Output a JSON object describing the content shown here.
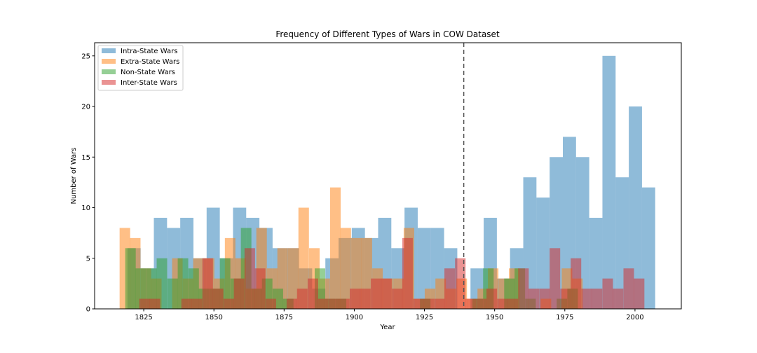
{
  "chart_data": {
    "type": "bar",
    "title": "Frequency of Different Types of Wars in COW Dataset",
    "xlabel": "Year",
    "ylabel": "Number of Wars",
    "xlim": [
      1807.5,
      2016.5
    ],
    "ylim": [
      0,
      26.3
    ],
    "x_ticks": [
      1825,
      1850,
      1875,
      1900,
      1925,
      1950,
      1975,
      2000
    ],
    "y_ticks": [
      0,
      5,
      10,
      15,
      20,
      25
    ],
    "grid": false,
    "legend_position": "top-left",
    "reference_line": {
      "x": 1939,
      "style": "dashed",
      "color": "#555555"
    },
    "series": [
      {
        "name": "Intra-State Wars",
        "color": "#1f77b4",
        "bin_width": 4.7,
        "bin_starts": [
          1819.2,
          1823.9,
          1828.6,
          1833.3,
          1838.0,
          1842.7,
          1847.4,
          1852.1,
          1856.8,
          1861.5,
          1866.2,
          1870.9,
          1875.6,
          1880.3,
          1885.0,
          1889.7,
          1894.4,
          1899.1,
          1903.8,
          1908.5,
          1913.2,
          1917.9,
          1922.6,
          1927.3,
          1932.0,
          1936.7,
          1941.4,
          1946.1,
          1950.8,
          1955.5,
          1960.2,
          1964.9,
          1969.6,
          1974.3,
          1979.0,
          1983.7,
          1988.4,
          1993.1,
          1997.8,
          2002.5
        ],
        "values": [
          6,
          4,
          9,
          8,
          9,
          5,
          10,
          5,
          10,
          9,
          8,
          6,
          6,
          4,
          2,
          5,
          7,
          8,
          7,
          9,
          6,
          10,
          8,
          8,
          6,
          0,
          4,
          9,
          3,
          6,
          13,
          11,
          15,
          17,
          15,
          9,
          25,
          13,
          20,
          12
        ]
      },
      {
        "name": "Extra-State Wars",
        "color": "#ff7f0e",
        "bin_width": 3.75,
        "bin_starts": [
          1816.4,
          1820.1,
          1823.9,
          1827.6,
          1831.4,
          1835.1,
          1838.9,
          1842.6,
          1846.4,
          1850.1,
          1853.9,
          1857.6,
          1861.4,
          1865.1,
          1868.9,
          1872.6,
          1876.4,
          1880.1,
          1883.9,
          1887.6,
          1891.4,
          1895.1,
          1898.9,
          1902.6,
          1906.4,
          1910.1,
          1913.9,
          1917.6,
          1921.4,
          1925.1,
          1928.9,
          1932.6,
          1936.4,
          1940.1,
          1943.9,
          1947.6,
          1951.4,
          1955.1,
          1958.9,
          1962.6,
          1966.4,
          1970.1,
          1973.9,
          1977.6
        ],
        "values": [
          8,
          7,
          4,
          3,
          0,
          5,
          3,
          5,
          5,
          3,
          7,
          5,
          2,
          8,
          4,
          6,
          6,
          10,
          6,
          3,
          12,
          8,
          7,
          7,
          4,
          3,
          3,
          8,
          1,
          2,
          3,
          2,
          3,
          1,
          2,
          4,
          3,
          4,
          0,
          0,
          1,
          0,
          4,
          3
        ]
      },
      {
        "name": "Non-State Wars",
        "color": "#2ca02c",
        "bin_width": 3.75,
        "bin_starts": [
          1818.4,
          1822.1,
          1825.9,
          1829.6,
          1833.4,
          1837.1,
          1840.9,
          1844.6,
          1848.4,
          1852.1,
          1855.9,
          1859.6,
          1863.4,
          1867.1,
          1870.9,
          1874.6,
          1878.4,
          1882.1,
          1885.9,
          1889.6,
          1893.4,
          1897.1,
          1900.9,
          1904.6,
          1908.4,
          1912.1,
          1915.9,
          1919.6,
          1923.4,
          1927.1,
          1930.9,
          1934.6,
          1938.4,
          1942.1,
          1945.9,
          1949.6,
          1953.4,
          1957.1,
          1960.9,
          1964.6,
          1968.4,
          1972.1,
          1975.9,
          1979.6,
          1983.4,
          1987.1,
          1990.9,
          1994.6,
          1998.4
        ],
        "values": [
          6,
          4,
          4,
          5,
          3,
          5,
          4,
          2,
          2,
          5,
          3,
          8,
          2,
          3,
          2,
          1,
          0,
          0,
          4,
          1,
          1,
          0,
          0,
          0,
          0,
          0,
          0,
          0,
          1,
          0,
          0,
          0,
          0,
          1,
          4,
          0,
          3,
          4,
          1,
          0,
          0,
          1,
          2,
          0,
          0,
          0,
          0,
          0,
          0
        ]
      },
      {
        "name": "Inter-State Wars",
        "color": "#d62728",
        "bin_width": 3.75,
        "bin_starts": [
          1823.4,
          1827.1,
          1830.9,
          1834.6,
          1838.4,
          1842.1,
          1845.9,
          1849.6,
          1853.4,
          1857.1,
          1860.9,
          1864.6,
          1868.4,
          1872.1,
          1875.9,
          1879.6,
          1883.4,
          1887.1,
          1890.9,
          1894.6,
          1898.4,
          1902.1,
          1905.9,
          1909.6,
          1913.4,
          1917.1,
          1920.9,
          1924.6,
          1928.4,
          1932.1,
          1935.9,
          1939.6,
          1943.4,
          1947.1,
          1950.9,
          1954.6,
          1958.4,
          1962.1,
          1965.9,
          1969.6,
          1973.4,
          1977.1,
          1980.9,
          1984.6,
          1988.4,
          1992.1,
          1995.9,
          1999.6
        ],
        "values": [
          1,
          1,
          0,
          0,
          1,
          1,
          5,
          2,
          1,
          3,
          6,
          4,
          1,
          0,
          1,
          2,
          3,
          1,
          1,
          1,
          2,
          2,
          3,
          3,
          2,
          7,
          1,
          1,
          1,
          4,
          5,
          1,
          1,
          2,
          1,
          1,
          4,
          2,
          2,
          6,
          2,
          5,
          2,
          2,
          3,
          2,
          4,
          3
        ]
      }
    ]
  }
}
